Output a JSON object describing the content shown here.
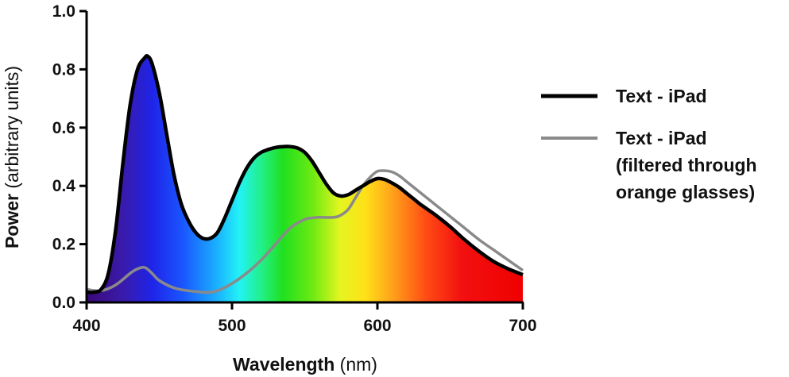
{
  "chart_data": {
    "type": "area",
    "xlabel_bold": "Wavelength",
    "xlabel_unit": "(nm)",
    "ylabel_bold": "Power",
    "ylabel_unit": "(arbitrary units)",
    "xlim": [
      400,
      700
    ],
    "ylim": [
      0,
      1.0
    ],
    "x_ticks": [
      400,
      500,
      600,
      700
    ],
    "x_tick_labels": [
      "400",
      "500",
      "600",
      "700"
    ],
    "y_ticks": [
      0,
      0.2,
      0.4,
      0.6,
      0.8,
      1.0
    ],
    "y_tick_labels": [
      "0.0",
      "0.2",
      "0.4",
      "0.6",
      "0.8",
      "1.0"
    ],
    "grid": false,
    "legend_position": "right",
    "series": [
      {
        "name": "Text - iPad",
        "color": "#000000",
        "fill": "spectrum",
        "x": [
          400,
          405,
          410,
          415,
          420,
          425,
          430,
          435,
          440,
          442,
          445,
          450,
          455,
          460,
          465,
          470,
          475,
          480,
          485,
          490,
          495,
          500,
          505,
          510,
          515,
          520,
          525,
          530,
          535,
          540,
          545,
          550,
          555,
          560,
          565,
          570,
          575,
          580,
          585,
          590,
          595,
          600,
          605,
          610,
          615,
          620,
          625,
          630,
          640,
          650,
          660,
          670,
          680,
          690,
          700
        ],
        "y": [
          0.035,
          0.035,
          0.045,
          0.1,
          0.25,
          0.48,
          0.68,
          0.8,
          0.84,
          0.845,
          0.82,
          0.72,
          0.58,
          0.44,
          0.34,
          0.28,
          0.24,
          0.22,
          0.22,
          0.24,
          0.29,
          0.35,
          0.41,
          0.46,
          0.495,
          0.515,
          0.525,
          0.532,
          0.535,
          0.535,
          0.53,
          0.515,
          0.485,
          0.445,
          0.405,
          0.375,
          0.365,
          0.37,
          0.385,
          0.4,
          0.415,
          0.425,
          0.422,
          0.41,
          0.395,
          0.375,
          0.355,
          0.335,
          0.3,
          0.26,
          0.215,
          0.175,
          0.14,
          0.115,
          0.095
        ]
      },
      {
        "name": "Text - iPad (filtered through orange glasses)",
        "color": "#8a8a8a",
        "x": [
          400,
          410,
          420,
          430,
          435,
          440,
          445,
          450,
          460,
          470,
          480,
          485,
          490,
          500,
          510,
          520,
          530,
          540,
          550,
          555,
          560,
          570,
          575,
          580,
          585,
          590,
          595,
          600,
          605,
          610,
          615,
          620,
          630,
          640,
          650,
          660,
          670,
          680,
          690,
          700
        ],
        "y": [
          0.045,
          0.04,
          0.06,
          0.1,
          0.115,
          0.12,
          0.1,
          0.075,
          0.05,
          0.04,
          0.035,
          0.035,
          0.04,
          0.065,
          0.1,
          0.145,
          0.2,
          0.255,
          0.285,
          0.29,
          0.292,
          0.292,
          0.3,
          0.32,
          0.36,
          0.4,
          0.43,
          0.45,
          0.452,
          0.448,
          0.435,
          0.415,
          0.375,
          0.335,
          0.295,
          0.255,
          0.215,
          0.18,
          0.145,
          0.11
        ]
      }
    ],
    "legend": {
      "item1_lines": [
        "Text - iPad"
      ],
      "item2_lines": [
        "Text - iPad",
        "(filtered through",
        "orange glasses)"
      ]
    }
  }
}
